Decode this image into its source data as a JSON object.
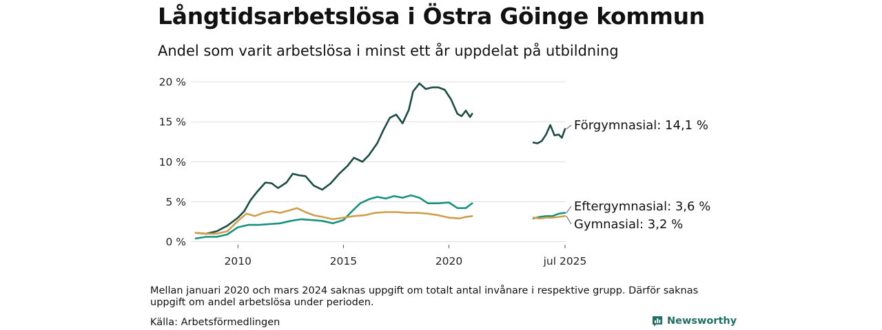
{
  "title": "Långtidsarbetslösa i Östra Göinge kommun",
  "subtitle": "Andel som varit arbetslösa i minst ett år uppdelat på utbildning",
  "note": "Mellan januari 2020 och mars 2024 saknas uppgift om totalt antal invånare i respektive grupp. Därför saknas uppgift om andel arbetslösa under perioden.",
  "source": "Källa: Arbetsförmedlingen",
  "brand": {
    "name": "Newsworthy",
    "icon": "newsworthy-logo-icon"
  },
  "colors": {
    "forgymnasial": "#1b4a41",
    "eftergymnasial": "#17917d",
    "gymnasial": "#cf9e4c",
    "grid": "#dddddd"
  },
  "chart_data": {
    "type": "line",
    "x_tick_labels": [
      "2010",
      "2015",
      "2020",
      "jul 2025"
    ],
    "x_tick_values": [
      2010,
      2015,
      2020,
      2025.5
    ],
    "y_tick_labels": [
      "0 %",
      "5 %",
      "10 %",
      "15 %",
      "20 %"
    ],
    "y_tick_values": [
      0,
      5,
      10,
      15,
      20
    ],
    "ylim": [
      0,
      20.5
    ],
    "grid": "horizontal",
    "gap": [
      "2020-12",
      "2025-01"
    ],
    "series": [
      {
        "name": "Förgymnasial",
        "end_label": "Förgymnasial: 14,1 %",
        "color": "#1b4a41",
        "segments": [
          [
            [
              2008.0,
              1.1
            ],
            [
              2008.5,
              1.0
            ],
            [
              2009.0,
              1.3
            ],
            [
              2009.5,
              2.0
            ],
            [
              2010.0,
              3.0
            ],
            [
              2010.3,
              3.8
            ],
            [
              2010.6,
              5.2
            ],
            [
              2010.9,
              6.2
            ],
            [
              2011.3,
              7.4
            ],
            [
              2011.6,
              7.3
            ],
            [
              2011.9,
              6.7
            ],
            [
              2012.3,
              7.4
            ],
            [
              2012.6,
              8.5
            ],
            [
              2012.9,
              8.3
            ],
            [
              2013.2,
              8.2
            ],
            [
              2013.6,
              7.0
            ],
            [
              2014.0,
              6.5
            ],
            [
              2014.4,
              7.3
            ],
            [
              2014.8,
              8.5
            ],
            [
              2015.2,
              9.5
            ],
            [
              2015.5,
              10.5
            ],
            [
              2015.9,
              10.0
            ],
            [
              2016.2,
              10.8
            ],
            [
              2016.6,
              12.3
            ],
            [
              2016.9,
              14.0
            ],
            [
              2017.2,
              15.5
            ],
            [
              2017.5,
              15.9
            ],
            [
              2017.8,
              14.8
            ],
            [
              2018.1,
              16.5
            ],
            [
              2018.3,
              18.8
            ],
            [
              2018.6,
              19.8
            ],
            [
              2018.9,
              19.1
            ],
            [
              2019.2,
              19.3
            ],
            [
              2019.5,
              19.3
            ],
            [
              2019.8,
              19.0
            ],
            [
              2020.1,
              17.8
            ],
            [
              2020.4,
              16.0
            ],
            [
              2020.6,
              15.7
            ],
            [
              2020.8,
              16.4
            ],
            [
              2021.0,
              15.6
            ],
            [
              2021.1,
              16.0
            ]
          ],
          [
            [
              2024.0,
              12.4
            ],
            [
              2024.2,
              12.3
            ],
            [
              2024.4,
              12.6
            ],
            [
              2024.6,
              13.4
            ],
            [
              2024.8,
              14.6
            ],
            [
              2025.0,
              13.3
            ],
            [
              2025.2,
              13.4
            ],
            [
              2025.35,
              13.0
            ],
            [
              2025.5,
              14.1
            ]
          ]
        ]
      },
      {
        "name": "Eftergymnasial",
        "end_label": "Eftergymnasial:  3,6 %",
        "color": "#17917d",
        "segments": [
          [
            [
              2008.0,
              0.4
            ],
            [
              2008.5,
              0.6
            ],
            [
              2009.0,
              0.6
            ],
            [
              2009.5,
              0.9
            ],
            [
              2010.0,
              1.8
            ],
            [
              2010.5,
              2.1
            ],
            [
              2011.0,
              2.1
            ],
            [
              2011.5,
              2.2
            ],
            [
              2012.0,
              2.3
            ],
            [
              2012.5,
              2.6
            ],
            [
              2013.0,
              2.8
            ],
            [
              2013.5,
              2.7
            ],
            [
              2014.0,
              2.6
            ],
            [
              2014.5,
              2.3
            ],
            [
              2015.0,
              2.7
            ],
            [
              2015.4,
              3.8
            ],
            [
              2015.8,
              4.8
            ],
            [
              2016.2,
              5.3
            ],
            [
              2016.6,
              5.6
            ],
            [
              2017.0,
              5.4
            ],
            [
              2017.4,
              5.7
            ],
            [
              2017.8,
              5.5
            ],
            [
              2018.2,
              5.8
            ],
            [
              2018.6,
              5.5
            ],
            [
              2019.0,
              4.8
            ],
            [
              2019.5,
              4.8
            ],
            [
              2020.0,
              4.9
            ],
            [
              2020.4,
              4.2
            ],
            [
              2020.8,
              4.2
            ],
            [
              2021.1,
              4.8
            ]
          ],
          [
            [
              2024.0,
              2.9
            ],
            [
              2024.3,
              3.1
            ],
            [
              2024.6,
              3.2
            ],
            [
              2024.9,
              3.2
            ],
            [
              2025.2,
              3.5
            ],
            [
              2025.5,
              3.6
            ]
          ]
        ]
      },
      {
        "name": "Gymnasial",
        "end_label": "Gymnasial:  3,2 %",
        "color": "#cf9e4c",
        "segments": [
          [
            [
              2008.0,
              1.1
            ],
            [
              2008.5,
              1.0
            ],
            [
              2009.0,
              1.0
            ],
            [
              2009.5,
              1.3
            ],
            [
              2010.0,
              2.6
            ],
            [
              2010.4,
              3.5
            ],
            [
              2010.8,
              3.2
            ],
            [
              2011.2,
              3.6
            ],
            [
              2011.6,
              3.8
            ],
            [
              2012.0,
              3.6
            ],
            [
              2012.4,
              3.9
            ],
            [
              2012.8,
              4.2
            ],
            [
              2013.2,
              3.7
            ],
            [
              2013.6,
              3.3
            ],
            [
              2014.0,
              3.1
            ],
            [
              2014.5,
              2.8
            ],
            [
              2015.0,
              3.0
            ],
            [
              2015.5,
              3.2
            ],
            [
              2016.0,
              3.3
            ],
            [
              2016.5,
              3.6
            ],
            [
              2017.0,
              3.7
            ],
            [
              2017.5,
              3.7
            ],
            [
              2018.0,
              3.6
            ],
            [
              2018.5,
              3.6
            ],
            [
              2019.0,
              3.5
            ],
            [
              2019.5,
              3.3
            ],
            [
              2020.0,
              3.0
            ],
            [
              2020.5,
              2.9
            ],
            [
              2020.8,
              3.1
            ],
            [
              2021.1,
              3.2
            ]
          ],
          [
            [
              2024.0,
              3.0
            ],
            [
              2024.3,
              2.9
            ],
            [
              2024.6,
              3.0
            ],
            [
              2024.9,
              3.0
            ],
            [
              2025.2,
              3.1
            ],
            [
              2025.5,
              3.2
            ]
          ]
        ]
      }
    ]
  }
}
